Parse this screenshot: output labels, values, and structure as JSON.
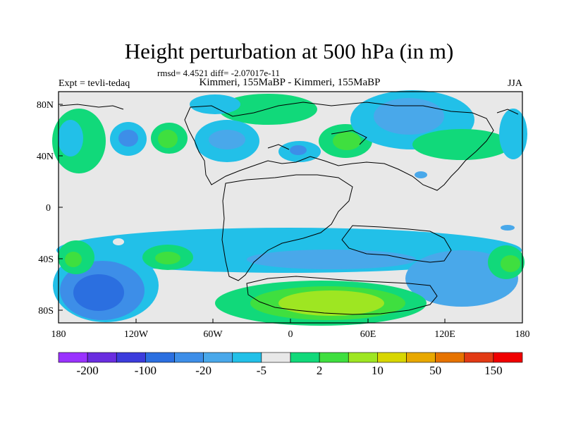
{
  "title": "Height perturbation at 500 hPa (in m)",
  "stats": "rmsd= 4.4521 diff= -2.07017e-11",
  "expt": "Expt = tevli-tedaq",
  "subtitle": "Kimmeri, 155MaBP - Kimmeri, 155MaBP",
  "season": "JJA",
  "lat_labels": [
    "80N",
    "40N",
    "0",
    "40S",
    "80S"
  ],
  "lon_labels": [
    "180",
    "120W",
    "60W",
    "0",
    "60E",
    "120E",
    "180"
  ],
  "colorbar": {
    "colors": [
      "#9a32ff",
      "#6a2de0",
      "#3c3cdc",
      "#2b6fe0",
      "#3d8ee8",
      "#49a8ea",
      "#22c0e8",
      "#e8e8e8",
      "#11d97a",
      "#3fdf3f",
      "#9ee622",
      "#d8d600",
      "#e8a800",
      "#e67300",
      "#e23a14",
      "#f00000"
    ],
    "labels": [
      "-200",
      "-100",
      "-20",
      "-5",
      "2",
      "10",
      "50",
      "150"
    ]
  },
  "colors": {
    "background": "#e8e8e8",
    "neg_light": "#22c0e8",
    "neg_mid": "#49a8ea",
    "neg_strong": "#3d8ee8",
    "neg_stronger": "#2b6fe0",
    "pos_light": "#11d97a",
    "pos_mid": "#3fdf3f",
    "pos_strong": "#9ee622"
  }
}
